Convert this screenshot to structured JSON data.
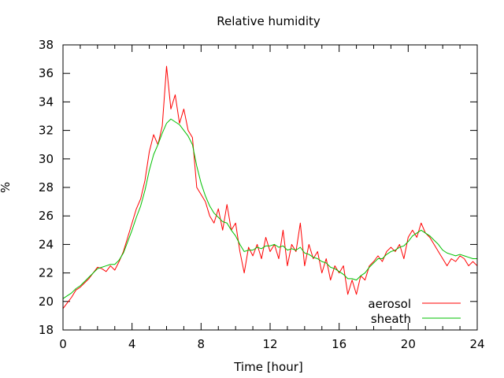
{
  "chart_data": {
    "type": "line",
    "title": "Relative humidity",
    "xlabel": "Time [hour]",
    "ylabel": "%",
    "xlim": [
      0,
      24
    ],
    "ylim": [
      18,
      38
    ],
    "x_ticks": [
      0,
      4,
      8,
      12,
      16,
      20,
      24
    ],
    "y_ticks": [
      18,
      20,
      22,
      24,
      26,
      28,
      30,
      32,
      34,
      36,
      38
    ],
    "grid": false,
    "legend_position": "bottom-right",
    "series": [
      {
        "name": "aerosol",
        "color": "#ff0000",
        "x": [
          0,
          0.25,
          0.5,
          0.75,
          1,
          1.25,
          1.5,
          1.75,
          2,
          2.25,
          2.5,
          2.75,
          3,
          3.25,
          3.5,
          3.75,
          4,
          4.25,
          4.5,
          4.75,
          5,
          5.25,
          5.5,
          5.75,
          6,
          6.25,
          6.5,
          6.75,
          7,
          7.25,
          7.5,
          7.75,
          8,
          8.25,
          8.5,
          8.75,
          9,
          9.25,
          9.5,
          9.75,
          10,
          10.25,
          10.5,
          10.75,
          11,
          11.25,
          11.5,
          11.75,
          12,
          12.25,
          12.5,
          12.75,
          13,
          13.25,
          13.5,
          13.75,
          14,
          14.25,
          14.5,
          14.75,
          15,
          15.25,
          15.5,
          15.75,
          16,
          16.25,
          16.5,
          16.75,
          17,
          17.25,
          17.5,
          17.75,
          18,
          18.25,
          18.5,
          18.75,
          19,
          19.25,
          19.5,
          19.75,
          20,
          20.25,
          20.5,
          20.75,
          21,
          21.25,
          21.5,
          21.75,
          22,
          22.25,
          22.5,
          22.75,
          23,
          23.25,
          23.5,
          23.75,
          24
        ],
        "y": [
          19.5,
          19.9,
          20.3,
          20.8,
          21.0,
          21.3,
          21.6,
          22.0,
          22.4,
          22.3,
          22.1,
          22.5,
          22.2,
          22.8,
          23.5,
          24.5,
          25.5,
          26.5,
          27.2,
          28.5,
          30.5,
          31.7,
          31.0,
          32.3,
          36.5,
          33.5,
          34.5,
          32.5,
          33.5,
          32.0,
          31.5,
          28.0,
          27.5,
          27.0,
          26.0,
          25.5,
          26.5,
          25.0,
          26.8,
          25.0,
          25.5,
          23.5,
          22.0,
          23.8,
          23.2,
          24.0,
          23.0,
          24.5,
          23.5,
          24.0,
          23.0,
          25.0,
          22.5,
          24.0,
          23.5,
          25.5,
          22.5,
          24.0,
          23.0,
          23.5,
          22.0,
          23.0,
          21.5,
          22.5,
          22.0,
          22.5,
          20.5,
          21.5,
          20.5,
          21.8,
          21.5,
          22.5,
          22.8,
          23.2,
          22.8,
          23.5,
          23.8,
          23.5,
          24.0,
          23.0,
          24.5,
          25.0,
          24.5,
          25.5,
          24.8,
          24.5,
          24.0,
          23.5,
          23.0,
          22.5,
          23.0,
          22.8,
          23.2,
          23.0,
          22.5,
          22.8,
          22.5
        ],
        "estimated": true
      },
      {
        "name": "sheath",
        "color": "#00c000",
        "x": [
          0,
          0.25,
          0.5,
          0.75,
          1,
          1.25,
          1.5,
          1.75,
          2,
          2.25,
          2.5,
          2.75,
          3,
          3.25,
          3.5,
          3.75,
          4,
          4.25,
          4.5,
          4.75,
          5,
          5.25,
          5.5,
          5.75,
          6,
          6.25,
          6.5,
          6.75,
          7,
          7.25,
          7.5,
          7.75,
          8,
          8.25,
          8.5,
          8.75,
          9,
          9.25,
          9.5,
          9.75,
          10,
          10.25,
          10.5,
          10.75,
          11,
          11.25,
          11.5,
          11.75,
          12,
          12.25,
          12.5,
          12.75,
          13,
          13.25,
          13.5,
          13.75,
          14,
          14.25,
          14.5,
          14.75,
          15,
          15.25,
          15.5,
          15.75,
          16,
          16.25,
          16.5,
          16.75,
          17,
          17.25,
          17.5,
          17.75,
          18,
          18.25,
          18.5,
          18.75,
          19,
          19.25,
          19.5,
          19.75,
          20,
          20.25,
          20.5,
          20.75,
          21,
          21.25,
          21.5,
          21.75,
          22,
          22.25,
          22.5,
          22.75,
          23,
          23.25,
          23.5,
          23.75,
          24
        ],
        "y": [
          20.2,
          20.4,
          20.6,
          20.9,
          21.1,
          21.4,
          21.7,
          22.0,
          22.3,
          22.4,
          22.5,
          22.6,
          22.6,
          22.9,
          23.4,
          24.2,
          25.0,
          25.9,
          26.7,
          27.8,
          29.2,
          30.3,
          31.0,
          31.8,
          32.5,
          32.8,
          32.6,
          32.4,
          32.0,
          31.6,
          31.0,
          29.5,
          28.3,
          27.4,
          26.7,
          26.2,
          25.9,
          25.6,
          25.5,
          25.0,
          24.6,
          24.0,
          23.5,
          23.6,
          23.6,
          23.8,
          23.7,
          23.9,
          23.9,
          24.0,
          23.8,
          23.9,
          23.6,
          23.7,
          23.6,
          23.8,
          23.4,
          23.3,
          23.1,
          23.0,
          22.8,
          22.7,
          22.4,
          22.3,
          22.1,
          21.9,
          21.6,
          21.6,
          21.5,
          21.8,
          22.0,
          22.4,
          22.7,
          23.0,
          23.0,
          23.3,
          23.5,
          23.6,
          23.8,
          23.9,
          24.2,
          24.6,
          24.8,
          25.0,
          24.8,
          24.6,
          24.3,
          24.0,
          23.6,
          23.4,
          23.3,
          23.2,
          23.3,
          23.2,
          23.1,
          23.0,
          23.0
        ],
        "estimated": true
      }
    ]
  }
}
